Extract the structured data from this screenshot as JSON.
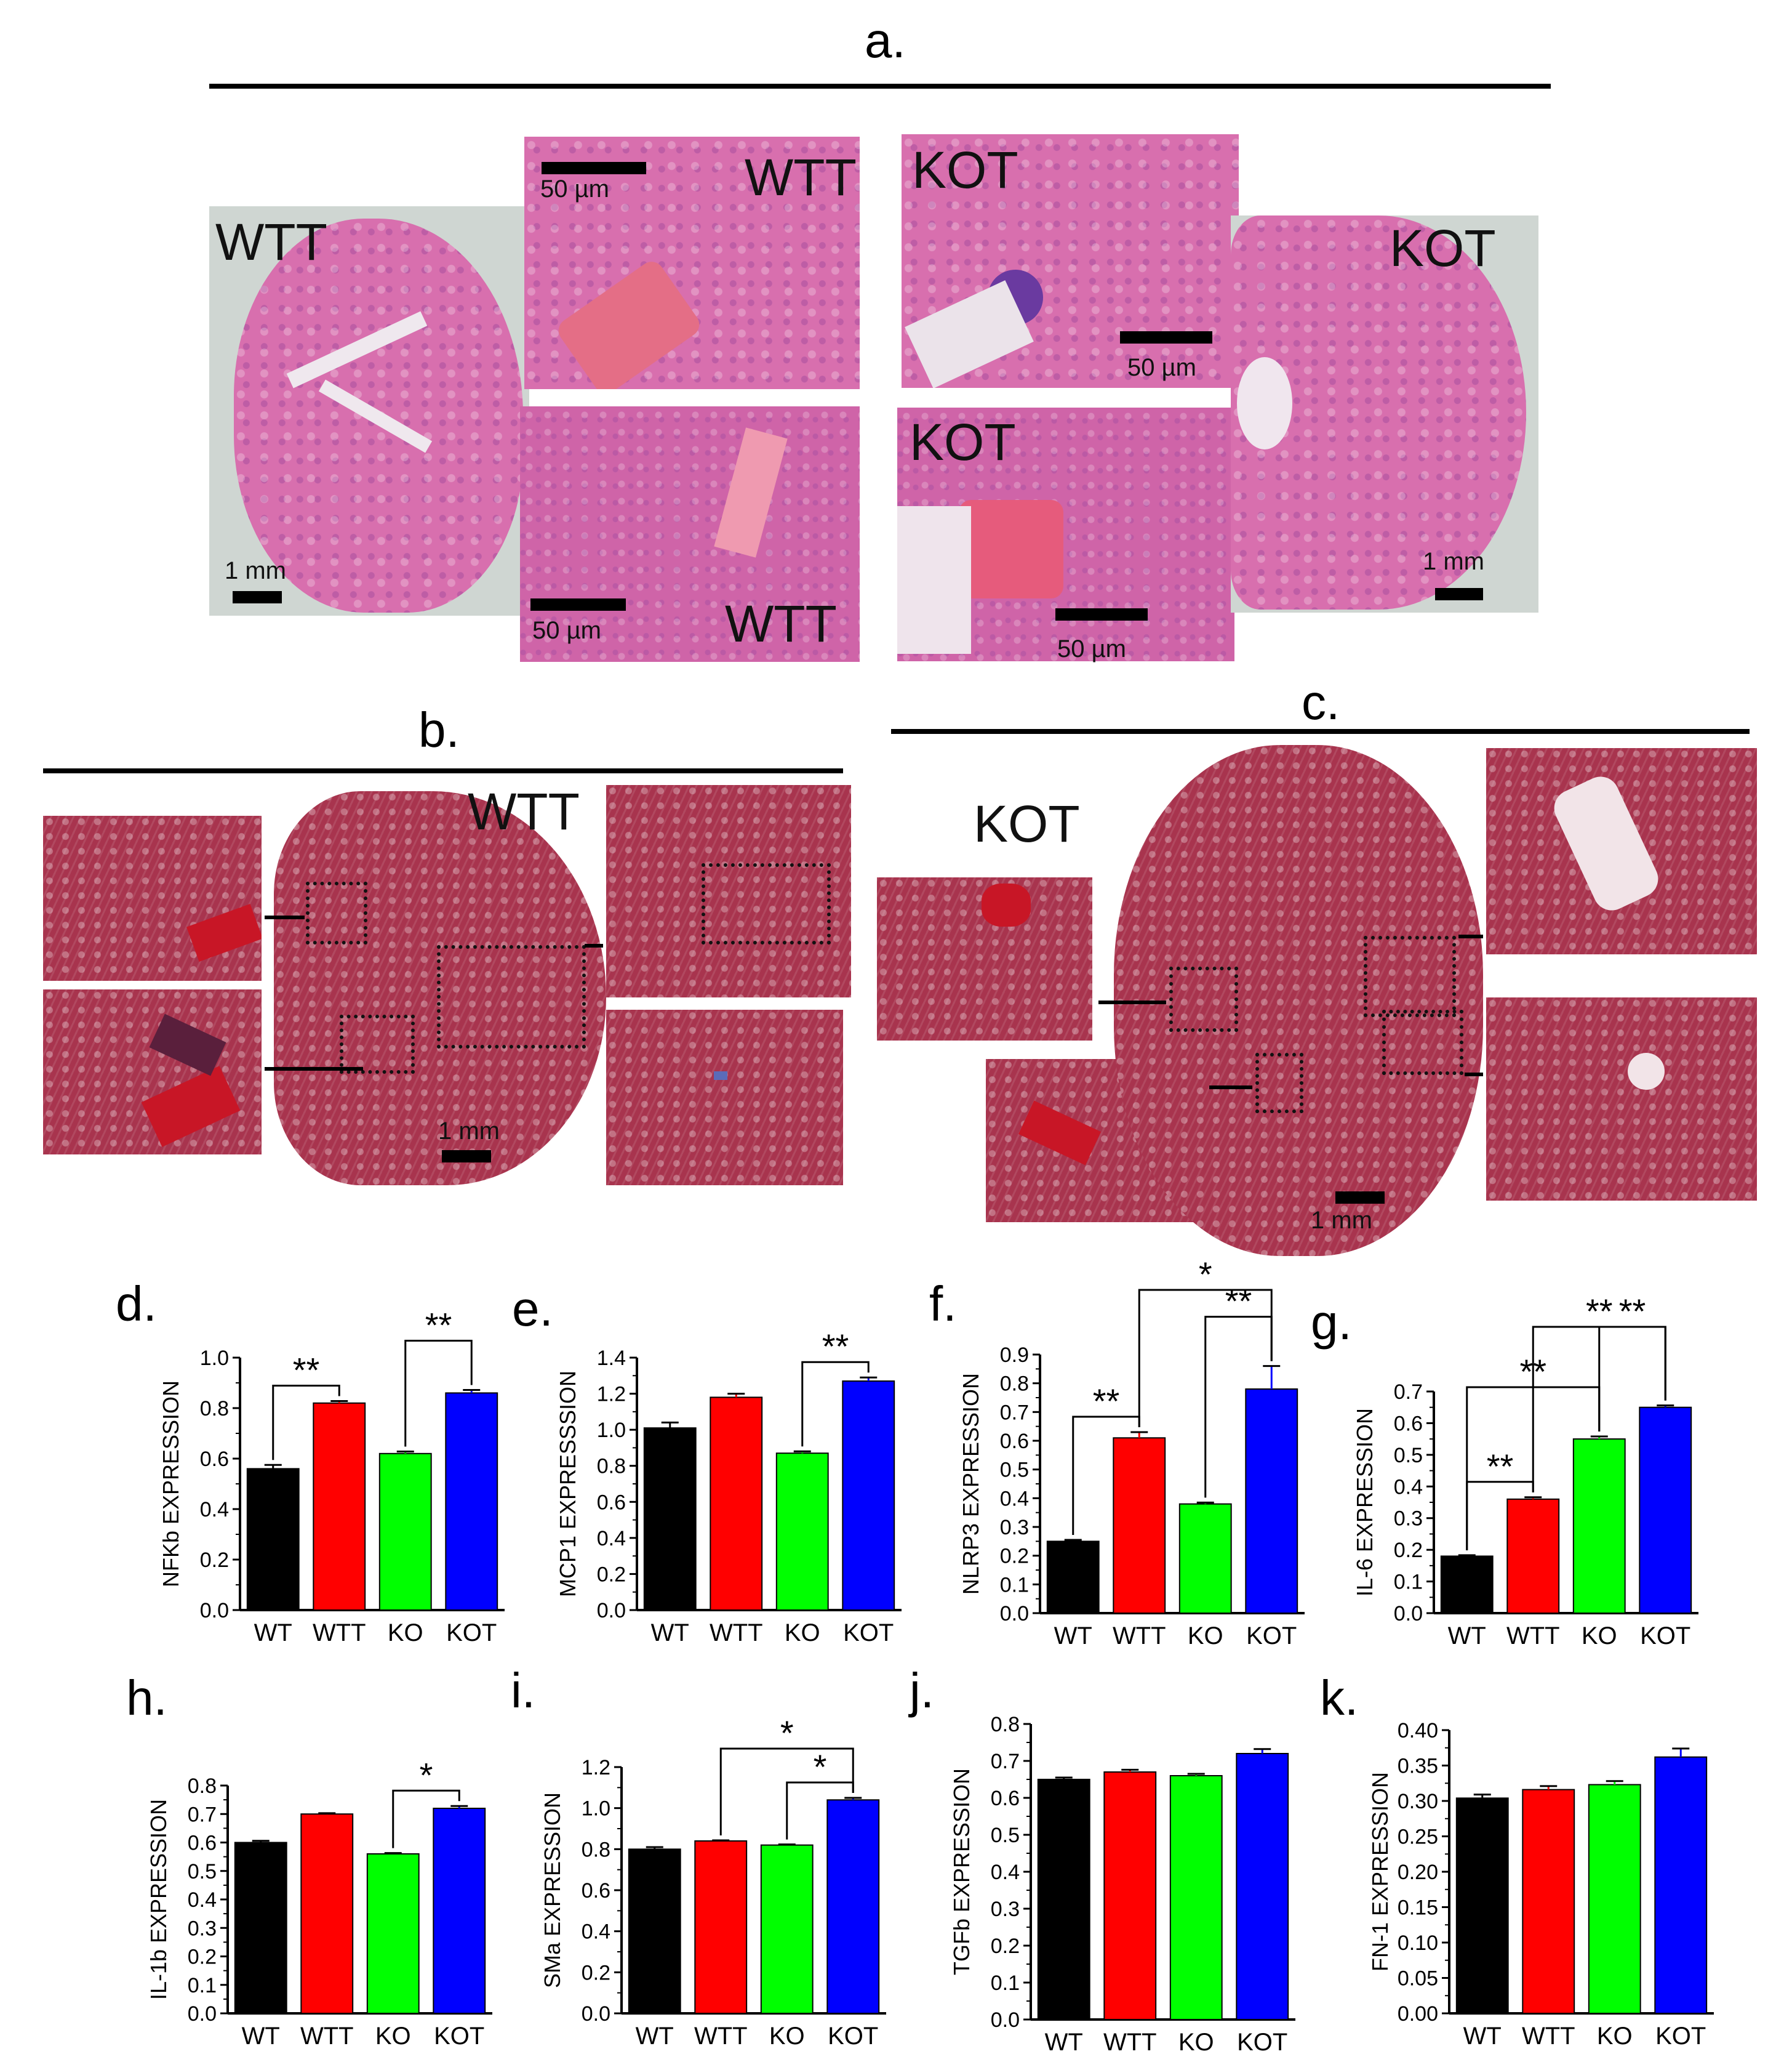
{
  "figure": {
    "panel_letters": [
      "a.",
      "b.",
      "c.",
      "d.",
      "e.",
      "f.",
      "g.",
      "h.",
      "i.",
      "j.",
      "k."
    ],
    "panel_a": {
      "labels": [
        "WTT",
        "WTT",
        "WTT",
        "KOT",
        "KOT",
        "KOT"
      ],
      "scale_bars": [
        "1 mm",
        "50 µm",
        "50 µm",
        "50 µm",
        "50 µm",
        "1 mm"
      ]
    },
    "panel_b": {
      "label": "WTT",
      "scale_bar": "1 mm"
    },
    "panel_c": {
      "label": "KOT",
      "scale_bar": "1 mm"
    },
    "colors": {
      "WT": "#000000",
      "WTT": "#ff0000",
      "KO": "#00ff00",
      "KOT": "#0000ff",
      "he_stain": "#d86fae",
      "masson": "#a8344e"
    }
  },
  "chart_data": [
    {
      "panel": "d.",
      "type": "bar",
      "categories": [
        "WT",
        "WTT",
        "KO",
        "KOT"
      ],
      "values": [
        0.56,
        0.82,
        0.62,
        0.86
      ],
      "errors": [
        0.015,
        0.008,
        0.008,
        0.012
      ],
      "ylabel": "NFKb EXPRESSION",
      "ylim": [
        0,
        1.0
      ],
      "ticks": [
        "0.0",
        "0.2",
        "0.4",
        "0.6",
        "0.8",
        "1.0"
      ],
      "tickvals": [
        0,
        0.2,
        0.4,
        0.6,
        0.8,
        1.0
      ],
      "sig": [
        {
          "from": 0,
          "to": 1,
          "label": "**"
        },
        {
          "from": 2,
          "to": 3,
          "label": "**"
        }
      ]
    },
    {
      "panel": "e.",
      "type": "bar",
      "categories": [
        "WT",
        "WTT",
        "KO",
        "KOT"
      ],
      "values": [
        1.01,
        1.18,
        0.87,
        1.27
      ],
      "errors": [
        0.03,
        0.02,
        0.01,
        0.02
      ],
      "ylabel": "MCP1 EXPRESSSION",
      "ylim": [
        0,
        1.4
      ],
      "ticks": [
        "0.0",
        "0.2",
        "0.4",
        "0.6",
        "0.8",
        "1.0",
        "1.2",
        "1.4"
      ],
      "tickvals": [
        0,
        0.2,
        0.4,
        0.6,
        0.8,
        1.0,
        1.2,
        1.4
      ],
      "sig": [
        {
          "from": 2,
          "to": 3,
          "label": "**"
        }
      ]
    },
    {
      "panel": "f.",
      "type": "bar",
      "categories": [
        "WT",
        "WTT",
        "KO",
        "KOT"
      ],
      "values": [
        0.25,
        0.61,
        0.38,
        0.78
      ],
      "errors": [
        0.005,
        0.02,
        0.005,
        0.08
      ],
      "ylabel": "NLRP3 EXPRESSION",
      "ylim": [
        0,
        0.9
      ],
      "ticks": [
        "0.0",
        "0.1",
        "0.2",
        "0.3",
        "0.4",
        "0.5",
        "0.6",
        "0.7",
        "0.8",
        "0.9"
      ],
      "tickvals": [
        0,
        0.1,
        0.2,
        0.3,
        0.4,
        0.5,
        0.6,
        0.7,
        0.8,
        0.9
      ],
      "sig": [
        {
          "from": 0,
          "to": 1,
          "label": "**"
        },
        {
          "from": 2,
          "to": 3,
          "label": "**"
        },
        {
          "from": 1,
          "to": 3,
          "label": "*"
        }
      ]
    },
    {
      "panel": "g.",
      "type": "bar",
      "categories": [
        "WT",
        "WTT",
        "KO",
        "KOT"
      ],
      "values": [
        0.18,
        0.36,
        0.55,
        0.65
      ],
      "errors": [
        0.003,
        0.006,
        0.008,
        0.006
      ],
      "ylabel": "IL-6 EXPRESSION",
      "ylim": [
        0,
        0.7
      ],
      "ticks": [
        "0.0",
        "0.1",
        "0.2",
        "0.3",
        "0.4",
        "0.5",
        "0.6",
        "0.7"
      ],
      "tickvals": [
        0,
        0.1,
        0.2,
        0.3,
        0.4,
        0.5,
        0.6,
        0.7
      ],
      "sig": [
        {
          "from": 0,
          "to": 1,
          "label": "**"
        },
        {
          "from": 0,
          "to": 2,
          "label": "**"
        },
        {
          "from": 2,
          "to": 3,
          "label": "**"
        },
        {
          "from": 1,
          "to": 3,
          "label": "**"
        }
      ]
    },
    {
      "panel": "h.",
      "type": "bar",
      "categories": [
        "WT",
        "WTT",
        "KO",
        "KOT"
      ],
      "values": [
        0.6,
        0.7,
        0.56,
        0.72
      ],
      "errors": [
        0.006,
        0.003,
        0.003,
        0.008
      ],
      "ylabel": "IL-1b EXPRESSION",
      "ylim": [
        0,
        0.8
      ],
      "ticks": [
        "0.0",
        "0.1",
        "0.2",
        "0.3",
        "0.4",
        "0.5",
        "0.6",
        "0.7",
        "0.8"
      ],
      "tickvals": [
        0,
        0.1,
        0.2,
        0.3,
        0.4,
        0.5,
        0.6,
        0.7,
        0.8
      ],
      "sig": [
        {
          "from": 2,
          "to": 3,
          "label": "*"
        }
      ]
    },
    {
      "panel": "i.",
      "type": "bar",
      "categories": [
        "WT",
        "WTT",
        "KO",
        "KOT"
      ],
      "values": [
        0.8,
        0.84,
        0.82,
        1.04
      ],
      "errors": [
        0.01,
        0.003,
        0.003,
        0.01
      ],
      "ylabel": "SMa EXPRESSION",
      "ylim": [
        0,
        1.2
      ],
      "ticks": [
        "0.0",
        "0.2",
        "0.4",
        "0.6",
        "0.8",
        "1.0",
        "1.2"
      ],
      "tickvals": [
        0,
        0.2,
        0.4,
        0.6,
        0.8,
        1.0,
        1.2
      ],
      "sig": [
        {
          "from": 2,
          "to": 3,
          "label": "*"
        },
        {
          "from": 1,
          "to": 3,
          "label": "*"
        }
      ]
    },
    {
      "panel": "j.",
      "type": "bar",
      "categories": [
        "WT",
        "WTT",
        "KO",
        "KOT"
      ],
      "values": [
        0.65,
        0.67,
        0.66,
        0.72
      ],
      "errors": [
        0.005,
        0.006,
        0.005,
        0.012
      ],
      "ylabel": "TGFb EXPRESSION",
      "ylim": [
        0,
        0.8
      ],
      "ticks": [
        "0.0",
        "0.1",
        "0.2",
        "0.3",
        "0.4",
        "0.5",
        "0.6",
        "0.7",
        "0.8"
      ],
      "tickvals": [
        0,
        0.1,
        0.2,
        0.3,
        0.4,
        0.5,
        0.6,
        0.7,
        0.8
      ],
      "sig": []
    },
    {
      "panel": "k.",
      "type": "bar",
      "categories": [
        "WT",
        "WTT",
        "KO",
        "KOT"
      ],
      "values": [
        0.304,
        0.316,
        0.323,
        0.362
      ],
      "errors": [
        0.005,
        0.005,
        0.005,
        0.012
      ],
      "ylabel": "FN-1 EXPRESSION",
      "ylim": [
        0,
        0.4
      ],
      "ticks": [
        "0.00",
        "0.05",
        "0.10",
        "0.15",
        "0.20",
        "0.25",
        "0.30",
        "0.35",
        "0.40"
      ],
      "tickvals": [
        0,
        0.05,
        0.1,
        0.15,
        0.2,
        0.25,
        0.3,
        0.35,
        0.4
      ],
      "sig": []
    }
  ]
}
